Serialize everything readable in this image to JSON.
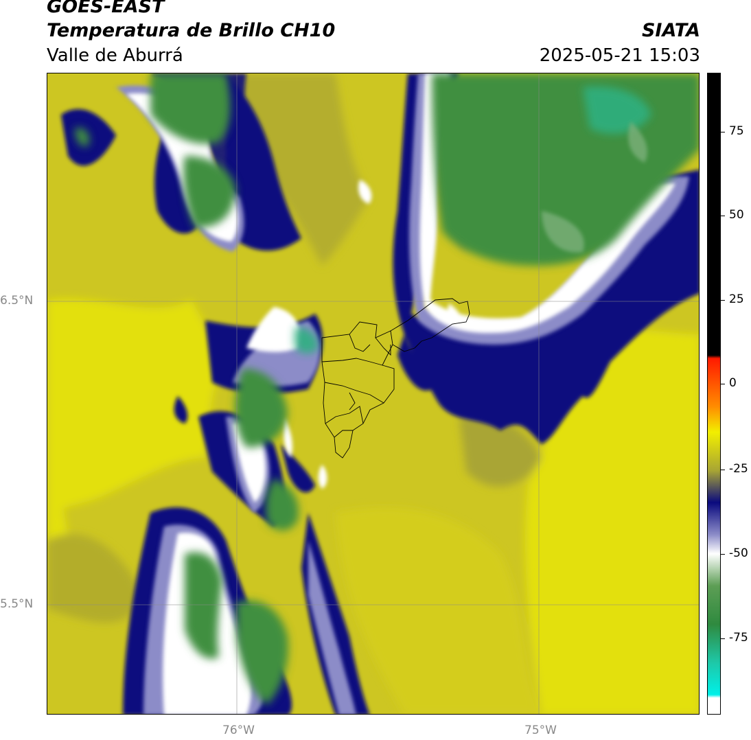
{
  "header": {
    "title_line1": "GOES-EAST",
    "title_line2": "Temperatura de Brillo CH10",
    "subtitle": "Valle de Aburrá",
    "brand": "SIATA",
    "datetime": "2025-05-21 15:03"
  },
  "map": {
    "lat_labels": [
      "6.5°N",
      "5.5°N"
    ],
    "lon_labels": [
      "76°W",
      "75°W"
    ],
    "colors": {
      "yellow_warm": "#e3e00e",
      "olive": "#c7c123",
      "olive_dark": "#a9a534",
      "navy": "#0a0a7e",
      "lavender": "#8c8cc8",
      "white": "#ffffff",
      "green_light": "#7cb07a",
      "green": "#3f8f3f",
      "teal": "#2bb38a"
    }
  },
  "colorbar": {
    "tick_labels": [
      "75",
      "50",
      "25",
      "0",
      "-25",
      "-50",
      "-75"
    ],
    "gradient_colors": [
      "#000000",
      "#000000",
      "#ff1a00",
      "#ff8c00",
      "#f2ef00",
      "#a8a534",
      "#0a0a7e",
      "#8c8cc8",
      "#ffffff",
      "#5d9e55",
      "#2f8a3f",
      "#1ec8a8",
      "#00f0e8",
      "#ffffff"
    ]
  }
}
